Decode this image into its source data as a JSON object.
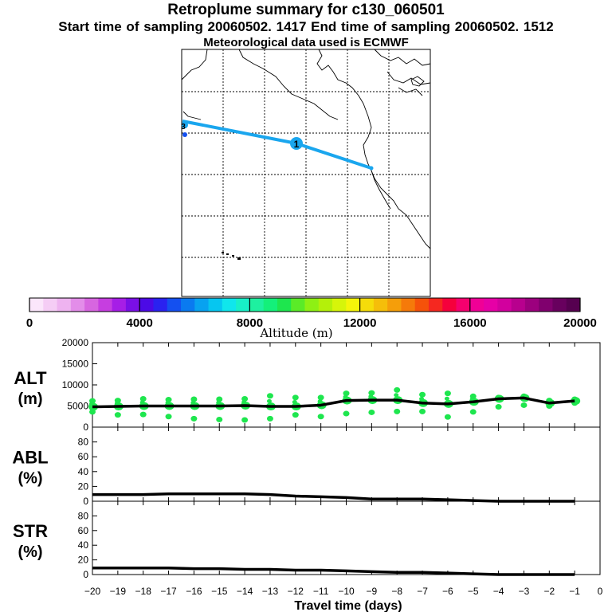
{
  "header": {
    "title": "Retroplume summary for c130_060501",
    "sampling": "Start time of sampling 20060502.  1417     End time of sampling 20060502.  1512",
    "met": "Meteorological data used is ECMWF"
  },
  "map": {
    "track_color": "#1aa6ee",
    "marker_label": "1",
    "source_label": "3"
  },
  "colorbar": {
    "label": "Altitude  (m)",
    "ticks": [
      "0",
      "4000",
      "8000",
      "12000",
      "16000",
      "20000"
    ],
    "range": [
      0,
      20000
    ],
    "colors": [
      "#fbe6fb",
      "#f5cdf5",
      "#eeb3f0",
      "#e38de9",
      "#d766e0",
      "#c63ee0",
      "#a61ee6",
      "#7a0fe6",
      "#4c0ae6",
      "#2a22f0",
      "#1450f0",
      "#0a7af0",
      "#08a2f0",
      "#06c6f0",
      "#10e6ec",
      "#18f0c8",
      "#1ef0a0",
      "#14f07a",
      "#1ee64e",
      "#5aeb28",
      "#8ef014",
      "#b4f00a",
      "#d6f50a",
      "#f5f50a",
      "#f5dc0a",
      "#f5be0a",
      "#f59e0a",
      "#f57a0a",
      "#f5520a",
      "#f52820",
      "#f5003c",
      "#f5006e",
      "#f00096",
      "#e600a6",
      "#d2009e",
      "#b8008e",
      "#9c007e",
      "#80006e",
      "#68005e",
      "#560050"
    ]
  },
  "chart_data": [
    {
      "type": "line",
      "panel": "ALT",
      "ylabel": "ALT",
      "yunit": "(m)",
      "ylim": [
        0,
        20000
      ],
      "yticks": [
        "0",
        "5000",
        "10000",
        "15000",
        "20000"
      ],
      "xlim": [
        -20,
        0
      ],
      "x": [
        -20,
        -19,
        -18,
        -17,
        -16,
        -15,
        -14,
        -13,
        -12,
        -11,
        -10,
        -9,
        -8,
        -7,
        -6,
        -5,
        -4,
        -3,
        -2,
        -1
      ],
      "values": [
        4800,
        4900,
        5000,
        5000,
        5000,
        5000,
        5100,
        4900,
        4900,
        5200,
        6300,
        6400,
        6400,
        5700,
        5500,
        6000,
        6700,
        6900,
        5700,
        6200
      ],
      "scatter_upper": [
        6200,
        6300,
        6700,
        6500,
        6600,
        6600,
        6700,
        7400,
        7000,
        7000,
        8000,
        8100,
        8800,
        7700,
        8000,
        7300,
        7000,
        7300,
        6300,
        6600
      ],
      "scatter_lower": [
        3600,
        2900,
        3000,
        2500,
        2000,
        1800,
        1700,
        2000,
        2900,
        2500,
        3200,
        3500,
        3700,
        3700,
        2400,
        3600,
        4800,
        5200,
        5000,
        5700
      ],
      "scatter_color": "#1ee64e"
    },
    {
      "type": "line",
      "panel": "ABL",
      "ylabel": "ABL",
      "yunit": "(%)",
      "ylim": [
        0,
        100
      ],
      "yticks": [
        "0",
        "20",
        "40",
        "60",
        "80"
      ],
      "xlim": [
        -20,
        0
      ],
      "x": [
        -20,
        -19,
        -18,
        -17,
        -16,
        -15,
        -14,
        -13,
        -12,
        -11,
        -10,
        -9,
        -8,
        -7,
        -6,
        -5,
        -4,
        -3,
        -2,
        -1
      ],
      "values": [
        9,
        9,
        9,
        10,
        10,
        10,
        10,
        9,
        7,
        6,
        5,
        3,
        3,
        3,
        2,
        1,
        0,
        0,
        0,
        0
      ]
    },
    {
      "type": "line",
      "panel": "STR",
      "ylabel": "STR",
      "yunit": "(%)",
      "ylim": [
        0,
        100
      ],
      "yticks": [
        "0",
        "20",
        "40",
        "60",
        "80"
      ],
      "xlim": [
        -20,
        0
      ],
      "x": [
        -20,
        -19,
        -18,
        -17,
        -16,
        -15,
        -14,
        -13,
        -12,
        -11,
        -10,
        -9,
        -8,
        -7,
        -6,
        -5,
        -4,
        -3,
        -2,
        -1
      ],
      "values": [
        9,
        9,
        9,
        9,
        8,
        8,
        7,
        7,
        6,
        6,
        5,
        4,
        3,
        3,
        2,
        1,
        0,
        0,
        0,
        0
      ]
    }
  ],
  "xaxis": {
    "label": "Travel time (days)",
    "ticks": [
      "−20",
      "−19",
      "−18",
      "−17",
      "−16",
      "−15",
      "−14",
      "−13",
      "−12",
      "−11",
      "−10",
      "−9",
      "−8",
      "−7",
      "−6",
      "−5",
      "−4",
      "−3",
      "−2",
      "−1",
      "0"
    ]
  }
}
